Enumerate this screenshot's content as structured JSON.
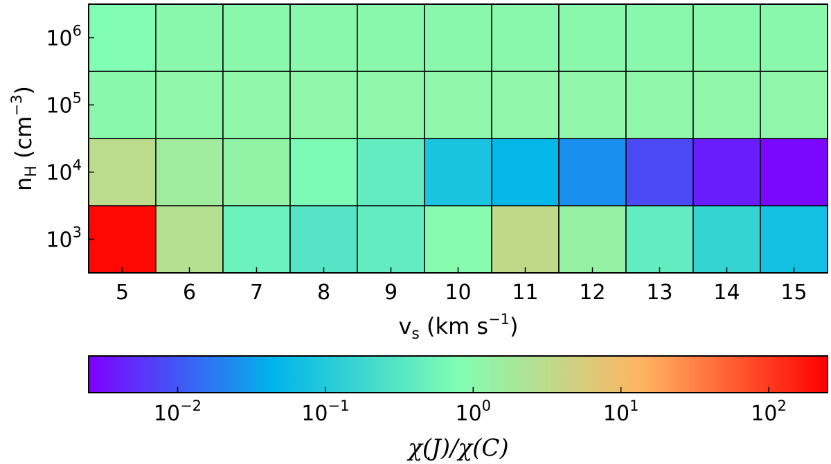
{
  "chart_data": {
    "type": "heatmap",
    "x": {
      "values": [
        5,
        6,
        7,
        8,
        9,
        10,
        11,
        12,
        13,
        14,
        15
      ],
      "label_base": "v",
      "label_sub": "s",
      "label_rest": " (km s",
      "label_sup": "−1",
      "label_end": ")"
    },
    "y": {
      "values": [
        1000,
        10000,
        100000,
        1000000
      ],
      "tick_base": "10",
      "tick_exponents": [
        "3",
        "4",
        "5",
        "6"
      ],
      "label_base": "n",
      "label_sub": "H",
      "label_rest": " (cm",
      "label_sup": "−3",
      "label_end": ")",
      "scale": "log"
    },
    "values": [
      [
        220,
        2.6,
        0.5,
        0.3,
        0.4,
        0.9,
        3.3,
        1.3,
        0.4,
        0.15,
        0.07
      ],
      [
        3.0,
        1.6,
        1.2,
        0.7,
        0.4,
        0.08,
        0.05,
        0.025,
        0.008,
        0.004,
        0.0028
      ],
      [
        1.0,
        1.1,
        1.1,
        1.1,
        1.1,
        1.1,
        1.1,
        1.1,
        1.1,
        1.1,
        1.1
      ],
      [
        0.8,
        1.0,
        1.0,
        1.0,
        1.0,
        1.0,
        1.0,
        1.0,
        1.0,
        1.0,
        1.0
      ]
    ],
    "colorbar": {
      "scale": "log",
      "range": [
        0.0025,
        250
      ],
      "ticks": [
        0.01,
        0.1,
        1,
        10,
        100
      ],
      "tick_base": "10",
      "tick_exponents": [
        "−2",
        "−1",
        "0",
        "1",
        "2"
      ],
      "label": "χ(J)/χ(C)",
      "colormap": "rainbow"
    },
    "grid": false
  }
}
